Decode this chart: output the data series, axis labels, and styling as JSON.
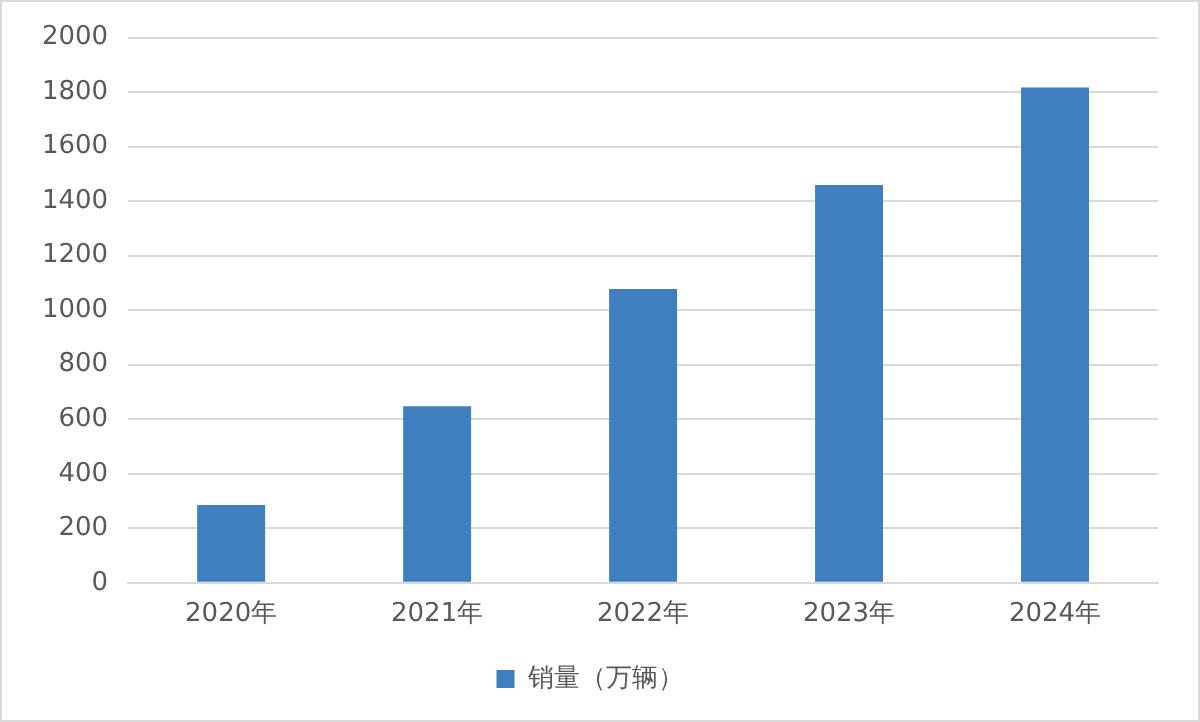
{
  "chart_data": {
    "type": "bar",
    "categories": [
      "2020年",
      "2021年",
      "2022年",
      "2023年",
      "2024年"
    ],
    "series": [
      {
        "name": "销量（万辆）",
        "color": "#3f7fc0",
        "values": [
          285,
          648,
          1078,
          1459,
          1817
        ]
      }
    ],
    "ylim": [
      0,
      2000
    ],
    "yticks": [
      0,
      200,
      400,
      600,
      800,
      1000,
      1200,
      1400,
      1600,
      1800,
      2000
    ],
    "grid": "y",
    "legend": "bottom"
  }
}
